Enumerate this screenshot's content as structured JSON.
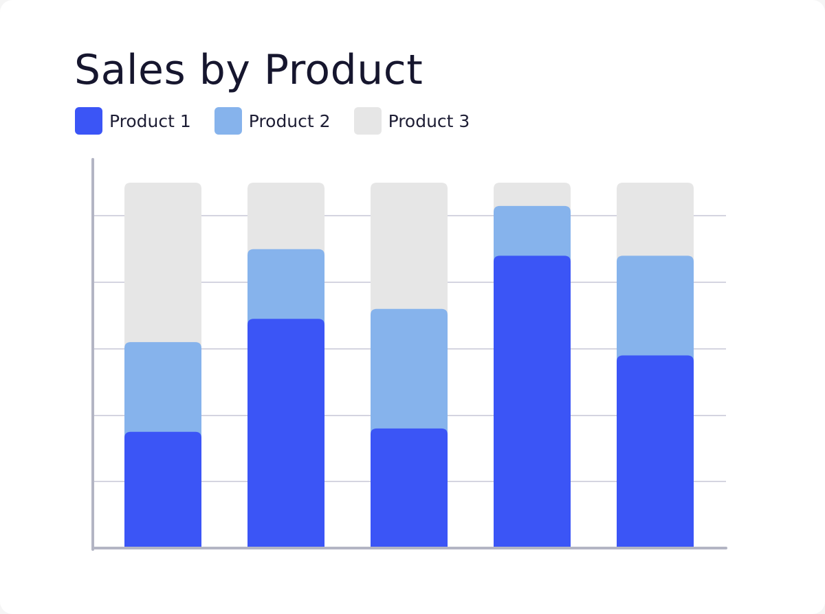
{
  "chart_data": {
    "type": "bar",
    "stacked": true,
    "title": "Sales by Product",
    "xlabel": "",
    "ylabel": "",
    "categories": [
      "",
      "",
      "",
      "",
      ""
    ],
    "ylim": [
      0,
      110
    ],
    "grid": true,
    "legend_position": "top-left",
    "series": [
      {
        "name": "Product 1",
        "color": "#3b55f6",
        "values": [
          35,
          69,
          36,
          88,
          58
        ]
      },
      {
        "name": "Product 2",
        "color": "#86b3ec",
        "values": [
          27,
          21,
          36,
          15,
          30
        ]
      },
      {
        "name": "Product 3",
        "color": "#e6e6e6",
        "values": [
          48,
          20,
          38,
          7,
          22
        ]
      }
    ]
  },
  "colors": {
    "axis": "#b3b5c4",
    "grid": "#c5c6d6"
  }
}
